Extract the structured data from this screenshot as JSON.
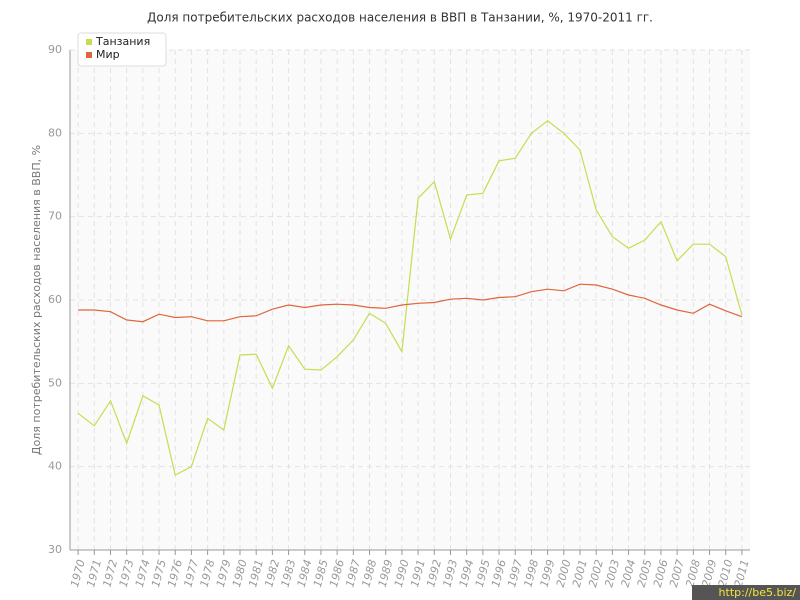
{
  "chart_data": {
    "type": "line",
    "title": "Доля потребительских расходов населения в ВВП в Танзании, %, 1970-2011 гг.",
    "y_label": "Доля потребительских расходов населения в ВВП, %",
    "watermark": "http://be5.biz/",
    "categories": [
      "1970",
      "1971",
      "1972",
      "1973",
      "1974",
      "1975",
      "1976",
      "1977",
      "1978",
      "1979",
      "1980",
      "1981",
      "1982",
      "1983",
      "1984",
      "1985",
      "1986",
      "1987",
      "1988",
      "1989",
      "1990",
      "1991",
      "1992",
      "1993",
      "1994",
      "1995",
      "1996",
      "1997",
      "1998",
      "1999",
      "2000",
      "2001",
      "2002",
      "2003",
      "2004",
      "2005",
      "2006",
      "2007",
      "2008",
      "2009",
      "2010",
      "2011"
    ],
    "series": [
      {
        "name": "Танзания",
        "color": "#c8dc50",
        "values": [
          46.4,
          44.9,
          47.9,
          42.8,
          48.5,
          47.4,
          39.0,
          40.0,
          45.8,
          44.4,
          53.4,
          53.5,
          49.4,
          54.5,
          51.7,
          51.6,
          53.2,
          55.2,
          58.4,
          57.2,
          53.8,
          72.2,
          74.2,
          67.3,
          72.6,
          72.8,
          76.7,
          77.0,
          80.0,
          81.5,
          80.0,
          78.0,
          70.8,
          67.6,
          66.2,
          67.2,
          69.4,
          64.7,
          66.7,
          66.7,
          65.2,
          58.2
        ]
      },
      {
        "name": "Мир",
        "color": "#e0653a",
        "values": [
          58.8,
          58.8,
          58.6,
          57.6,
          57.4,
          58.3,
          57.9,
          58.0,
          57.5,
          57.5,
          58.0,
          58.1,
          58.9,
          59.4,
          59.1,
          59.4,
          59.5,
          59.4,
          59.1,
          59.0,
          59.4,
          59.6,
          59.7,
          60.1,
          60.2,
          60.0,
          60.3,
          60.4,
          61.0,
          61.3,
          61.1,
          61.9,
          61.8,
          61.3,
          60.6,
          60.2,
          59.4,
          58.8,
          58.4,
          59.5,
          58.7,
          58.0
        ]
      }
    ],
    "ylim": [
      30,
      90
    ],
    "yticks": [
      30,
      40,
      50,
      60,
      70,
      80,
      90
    ],
    "grid": true,
    "legend": "top-left"
  }
}
